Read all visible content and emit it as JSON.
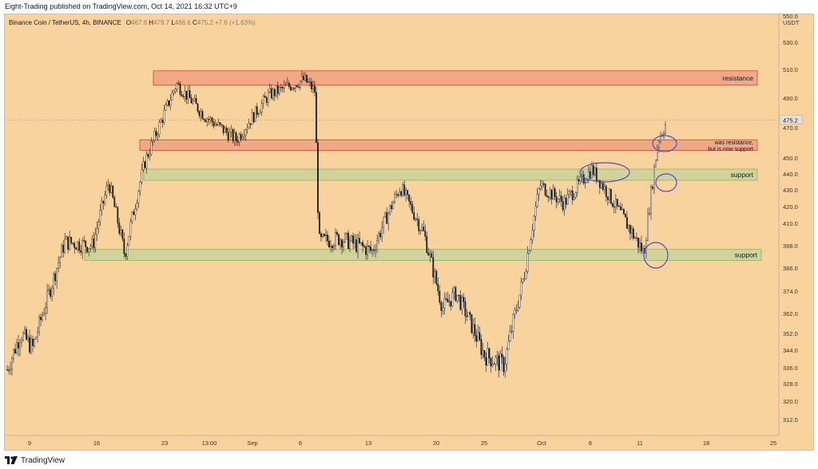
{
  "header": {
    "published_text": "Eight-Trading published on TradingView.com, Oct 14, 2021 16:32 UTC+9"
  },
  "footer": {
    "brand": "TradingView"
  },
  "chart_data": {
    "type": "candlestick",
    "symbol_title": "Binance Coin / TetherUS, 4h, BINANCE",
    "ohlc_readout": {
      "o_label": "O",
      "o_value": "467.6",
      "h_label": "H",
      "h_value": "479.7",
      "l_label": "L",
      "l_value": "466.6",
      "c_label": "C",
      "c_value": "475.2",
      "change": "+7.6 (+1.63%)"
    },
    "currency_label": "USDT",
    "last_price": 475.2,
    "last_price_label": "475.2",
    "y_axis_ticks": [
      "550.0",
      "530.0",
      "510.0",
      "490.0",
      "470.0",
      "450.0",
      "440.0",
      "430.0",
      "420.0",
      "410.0",
      "398.0",
      "386.0",
      "374.0",
      "362.0",
      "352.0",
      "344.0",
      "336.0",
      "328.0",
      "320.0",
      "312.0"
    ],
    "x_axis_ticks": [
      "9",
      "16",
      "23",
      "13:00",
      "Sep",
      "6",
      "13",
      "20",
      "25",
      "Oct",
      "6",
      "11",
      "18",
      "25"
    ],
    "approx_close_path": [
      {
        "date": "Aug 7",
        "close": 335
      },
      {
        "date": "Aug 9",
        "close": 352
      },
      {
        "date": "Aug 11",
        "close": 345
      },
      {
        "date": "Aug 14",
        "close": 400
      },
      {
        "date": "Aug 16",
        "close": 398
      },
      {
        "date": "Aug 18",
        "close": 435
      },
      {
        "date": "Aug 20",
        "close": 393
      },
      {
        "date": "Aug 22",
        "close": 447
      },
      {
        "date": "Aug 24",
        "close": 500
      },
      {
        "date": "Aug 27",
        "close": 478
      },
      {
        "date": "Aug 30",
        "close": 462
      },
      {
        "date": "Sep 2",
        "close": 492
      },
      {
        "date": "Sep 5",
        "close": 503
      },
      {
        "date": "Sep 7",
        "close": 495
      },
      {
        "date": "Sep 7 (drop)",
        "close": 400
      },
      {
        "date": "Sep 10",
        "close": 402
      },
      {
        "date": "Sep 13",
        "close": 395
      },
      {
        "date": "Sep 16",
        "close": 432
      },
      {
        "date": "Sep 19",
        "close": 404
      },
      {
        "date": "Sep 21",
        "close": 365
      },
      {
        "date": "Sep 24",
        "close": 373
      },
      {
        "date": "Sep 27",
        "close": 342
      },
      {
        "date": "Sep 29",
        "close": 337
      },
      {
        "date": "Oct 1",
        "close": 382
      },
      {
        "date": "Oct 3",
        "close": 433
      },
      {
        "date": "Oct 5",
        "close": 422
      },
      {
        "date": "Oct 8",
        "close": 443
      },
      {
        "date": "Oct 10",
        "close": 420
      },
      {
        "date": "Oct 12",
        "close": 394
      },
      {
        "date": "Oct 13",
        "close": 462
      },
      {
        "date": "Oct 14",
        "close": 475.2
      }
    ],
    "zones": [
      {
        "kind": "resistance",
        "label": "resistance",
        "low": 499,
        "high": 509,
        "color": "#f0a07f"
      },
      {
        "kind": "resistance-support",
        "label": "was resistance,\nbut is now support",
        "low": 455,
        "high": 462,
        "color": "#f0a07f"
      },
      {
        "kind": "support",
        "label": "support",
        "low": 436,
        "high": 443,
        "color": "#c9d39b"
      },
      {
        "kind": "support",
        "label": "support",
        "low": 390,
        "high": 396,
        "color": "#c9d39b"
      }
    ],
    "colors": {
      "background": "#f9d39e",
      "candle_up": "#ffffff",
      "candle_down": "#1b1b1b",
      "resistance_fill": "#f0a07f",
      "support_fill": "#c9d39b",
      "ellipse": "#4a4ec8"
    }
  }
}
